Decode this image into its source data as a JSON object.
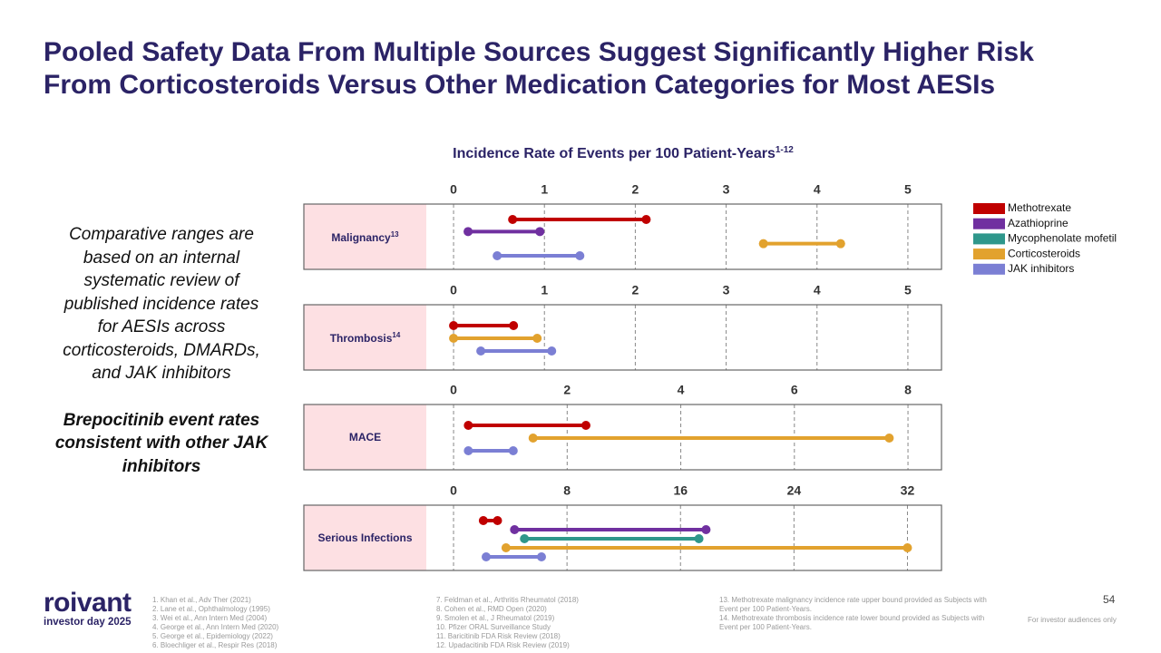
{
  "title": [
    "Pooled Safety Data From Multiple Sources Suggest Significantly Higher Risk",
    "From Corticosteroids Versus Other Medication Categories for Most AESIs"
  ],
  "chart_title": "Incidence Rate of Events per 100 Patient-Years",
  "chart_title_note": "1-12",
  "legend": [
    {
      "name": "Methotrexate",
      "color": "#c00000"
    },
    {
      "name": "Azathioprine",
      "color": "#7030a0"
    },
    {
      "name": "Mycophenolate mofetil",
      "color": "#2f978b"
    },
    {
      "name": "Corticosteroids",
      "color": "#e2a22e"
    },
    {
      "name": "JAK inhibitors",
      "color": "#7b7fd4"
    }
  ],
  "chart_data": [
    {
      "type": "dumbbell",
      "category": "Malignancy",
      "category_note": "13",
      "xlim": [
        -0.3,
        5.37
      ],
      "xticks": [
        0,
        1,
        2,
        3,
        4,
        5
      ],
      "grid": true,
      "series": [
        {
          "name": "Methotrexate",
          "values": [
            0.65,
            2.12
          ]
        },
        {
          "name": "Azathioprine",
          "values": [
            0.16,
            0.95
          ]
        },
        {
          "name": "Corticosteroids",
          "values": [
            3.41,
            4.26
          ]
        },
        {
          "name": "JAK inhibitors",
          "values": [
            0.48,
            1.39
          ]
        }
      ]
    },
    {
      "type": "dumbbell",
      "category": "Thrombosis",
      "category_note": "14",
      "xlim": [
        -0.3,
        5.37
      ],
      "xticks": [
        0,
        1,
        2,
        3,
        4,
        5
      ],
      "grid": true,
      "series": [
        {
          "name": "Methotrexate",
          "values": [
            0,
            0.66
          ]
        },
        {
          "name": "Corticosteroids",
          "values": [
            0,
            0.92
          ]
        },
        {
          "name": "JAK inhibitors",
          "values": [
            0.3,
            1.08
          ]
        }
      ]
    },
    {
      "type": "dumbbell",
      "category": "MACE",
      "xlim": [
        -0.48,
        8.59
      ],
      "xticks": [
        0,
        2,
        4,
        6,
        8
      ],
      "grid": true,
      "series": [
        {
          "name": "Methotrexate",
          "values": [
            0.26,
            2.33
          ]
        },
        {
          "name": "Corticosteroids",
          "values": [
            1.4,
            7.67
          ]
        },
        {
          "name": "JAK inhibitors",
          "values": [
            0.26,
            1.05
          ]
        }
      ]
    },
    {
      "type": "dumbbell",
      "category": "Serious Infections",
      "xlim": [
        -1.92,
        34.4
      ],
      "xticks": [
        0,
        8,
        16,
        24,
        32
      ],
      "grid": true,
      "series": [
        {
          "name": "Methotrexate",
          "values": [
            2.1,
            3.1
          ]
        },
        {
          "name": "Azathioprine",
          "values": [
            4.3,
            17.8
          ]
        },
        {
          "name": "Mycophenolate mofetil",
          "values": [
            5.0,
            17.3
          ]
        },
        {
          "name": "Corticosteroids",
          "values": [
            3.7,
            32.0
          ]
        },
        {
          "name": "JAK inhibitors",
          "values": [
            2.3,
            6.2
          ]
        }
      ]
    }
  ],
  "summary": "Comparative ranges are based on an internal systematic review of published incidence rates for AESIs across corticosteroids, DMARDs, and JAK inhibitors",
  "highlight": "Brepocitinib event rates consistent with other JAK inhibitors",
  "footnotes": [
    [
      "1. Khan et al., Adv Ther (2021)",
      "2. Lane et al., Ophthalmology (1995)",
      "3. Wei et al., Ann Intern Med (2004)",
      "4. George et al., Ann Intern Med (2020)",
      "5. George et al., Epidemiology (2022)",
      "6. Bloechliger et al., Respir Res (2018)"
    ],
    [
      "7. Feldman et al., Arthritis Rheumatol (2018)",
      "8. Cohen et al., RMD Open (2020)",
      "9. Smolen et al., J Rheumatol (2019)",
      "10. Pfizer ORAL Surveillance Study",
      "11. Baricitinib FDA Risk Review (2018)",
      "12. Upadacitinib FDA Risk Review (2019)"
    ],
    [
      "13. Methotrexate malignancy incidence rate upper bound provided as Subjects with Event per 100 Patient-Years.",
      "14. Methotrexate thrombosis incidence rate lower bound provided as Subjects with Event per 100 Patient-Years."
    ]
  ],
  "logo": {
    "name": "roivant",
    "tagline": "investor day 2025"
  },
  "page_number": 54,
  "disclaimer": "For investor audiences only"
}
